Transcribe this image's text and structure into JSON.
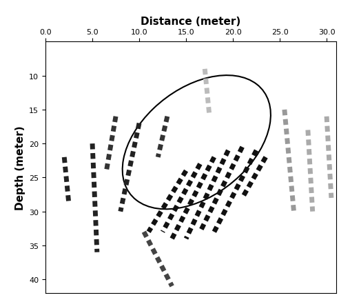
{
  "chart_data": {
    "type": "line",
    "xlabel": "Distance (meter)",
    "ylabel": "Depth (meter)",
    "xlim": [
      0,
      31
    ],
    "ylim": [
      42,
      5
    ],
    "xticks": [
      {
        "value": 0,
        "label": "0.0"
      },
      {
        "value": 5,
        "label": "5.0"
      },
      {
        "value": 10,
        "label": "10.0"
      },
      {
        "value": 15,
        "label": "15.0"
      },
      {
        "value": 20,
        "label": "20.0"
      },
      {
        "value": 25,
        "label": "25.0"
      },
      {
        "value": 30,
        "label": "30.0"
      }
    ],
    "yticks": [
      10,
      15,
      20,
      25,
      30,
      35,
      40
    ],
    "line_style": "dashed",
    "series": [
      {
        "color": "#111111",
        "x": [
          22.5,
          18.0
        ],
        "values": [
          21,
          33
        ]
      },
      {
        "color": "#111111",
        "x": [
          21.0,
          16.5
        ],
        "values": [
          20.5,
          33
        ]
      },
      {
        "color": "#111111",
        "x": [
          19.5,
          15.0
        ],
        "values": [
          21,
          34
        ]
      },
      {
        "color": "#111111",
        "x": [
          18.0,
          13.5
        ],
        "values": [
          22,
          34
        ]
      },
      {
        "color": "#111111",
        "x": [
          16.5,
          12.5
        ],
        "values": [
          23,
          33
        ]
      },
      {
        "color": "#111111",
        "x": [
          15.0,
          11.0
        ],
        "values": [
          24,
          33
        ]
      },
      {
        "color": "#111111",
        "x": [
          23.5,
          21.0
        ],
        "values": [
          22,
          28
        ]
      },
      {
        "color": "#222222",
        "x": [
          5.0,
          5.5
        ],
        "values": [
          20,
          36
        ]
      },
      {
        "color": "#222222",
        "x": [
          2.0,
          2.5
        ],
        "values": [
          22,
          29
        ]
      },
      {
        "color": "#222222",
        "x": [
          10.0,
          8.0
        ],
        "values": [
          17,
          30
        ]
      },
      {
        "color": "#333333",
        "x": [
          13.0,
          12.0
        ],
        "values": [
          16,
          22
        ]
      },
      {
        "color": "#333333",
        "x": [
          7.5,
          6.5
        ],
        "values": [
          16,
          24
        ]
      },
      {
        "color": "#444444",
        "x": [
          10.5,
          13.5
        ],
        "values": [
          33,
          41
        ]
      },
      {
        "color": "#999999",
        "x": [
          25.5,
          26.5
        ],
        "values": [
          15,
          30
        ]
      },
      {
        "color": "#aaaaaa",
        "x": [
          28.0,
          28.5
        ],
        "values": [
          18,
          30
        ]
      },
      {
        "color": "#aaaaaa",
        "x": [
          30.0,
          30.5
        ],
        "values": [
          16,
          28
        ]
      },
      {
        "color": "#bbbbbb",
        "x": [
          17.0,
          17.5
        ],
        "values": [
          9,
          16
        ]
      }
    ]
  }
}
